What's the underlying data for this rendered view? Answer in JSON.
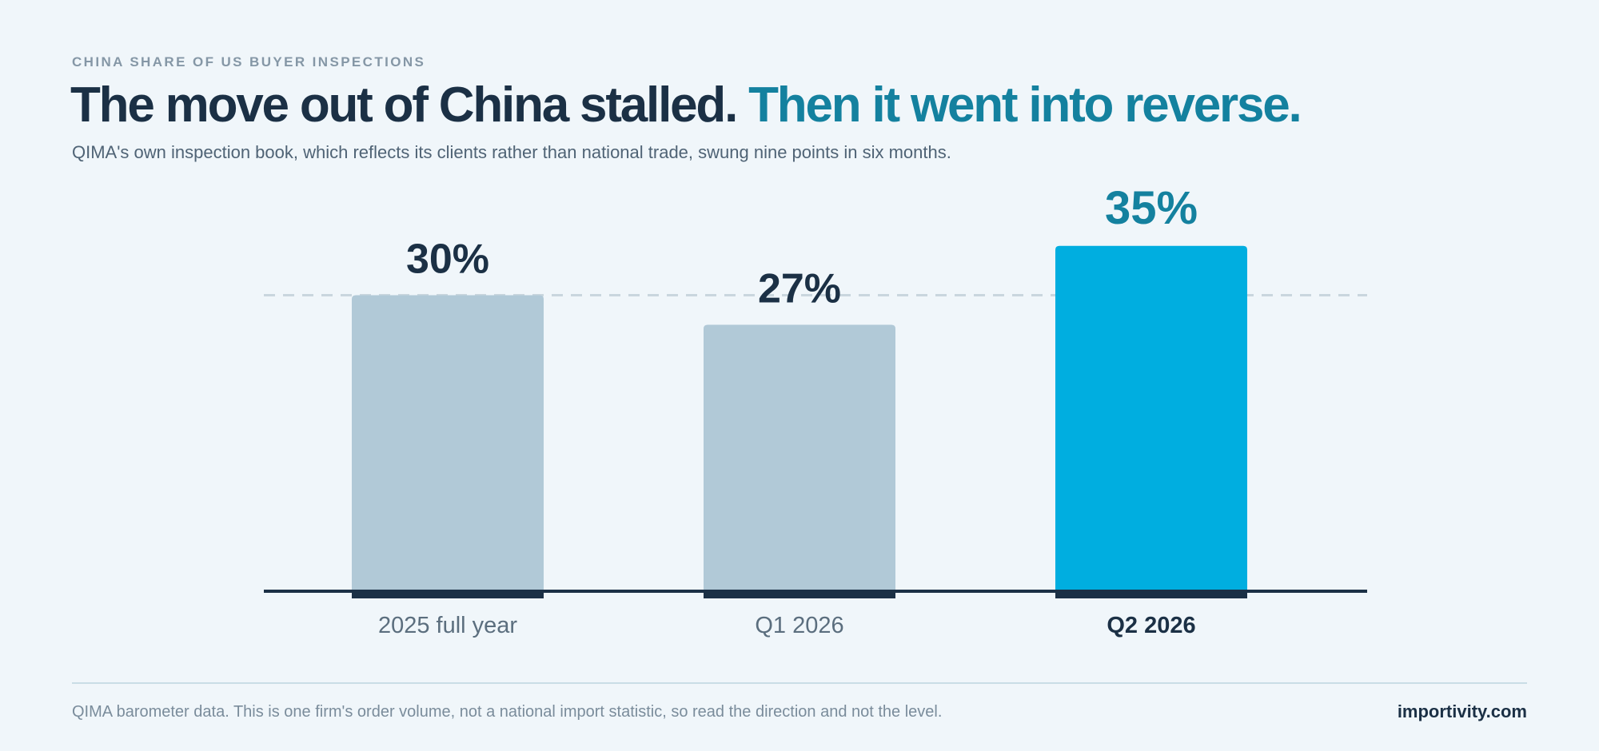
{
  "header": {
    "eyebrow": "CHINA SHARE OF US BUYER INSPECTIONS",
    "headline_main": "The move out of China stalled.",
    "headline_accent": "Then it went into reverse.",
    "subtitle": "QIMA's own inspection book, which reflects its clients rather than national trade, swung nine points in six months."
  },
  "chart_data": {
    "type": "bar",
    "categories": [
      "2025 full year",
      "Q1 2026",
      "Q2 2026"
    ],
    "values": [
      30,
      27,
      35
    ],
    "value_labels": [
      "30%",
      "27%",
      "35%"
    ],
    "highlight_index": 2,
    "reference_line": 30,
    "ylim": [
      0,
      35
    ],
    "grid": false,
    "xlabel": "",
    "ylabel": "",
    "colors": {
      "bar": "#b1c9d7",
      "highlight": "#00aee0",
      "label": "#1b3045",
      "highlight_label": "#14819f",
      "tick": "#5b6e7e",
      "baseline": "#1b3045",
      "reference": "#c9d6de"
    }
  },
  "footer": {
    "note": "QIMA barometer data. This is one firm's order volume, not a national import statistic, so read the direction and not the level.",
    "brand": "importivity.com"
  }
}
